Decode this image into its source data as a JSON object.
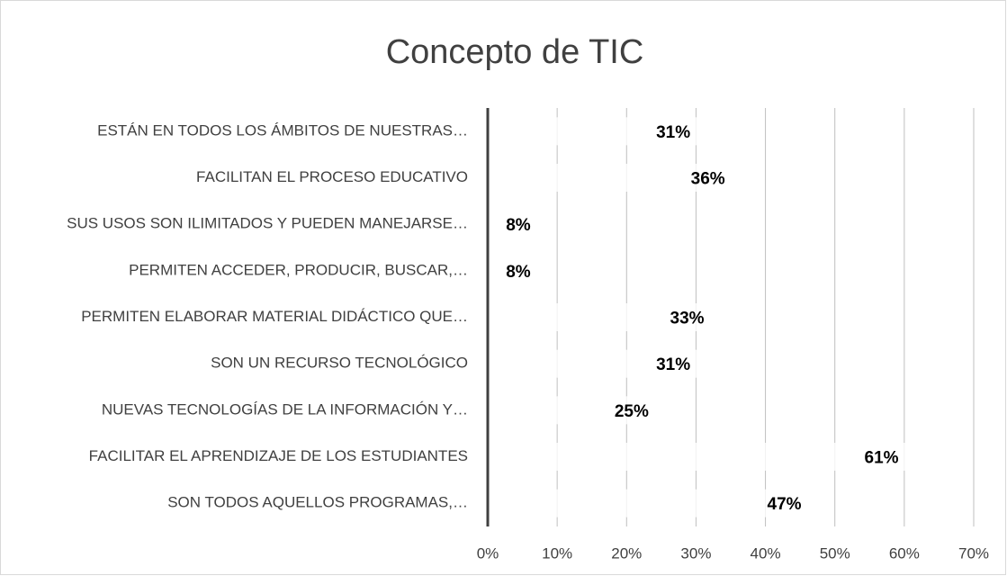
{
  "chart_data": {
    "type": "bar",
    "orientation": "horizontal",
    "title": "Concepto de TIC",
    "categories": [
      "ESTÁN EN TODOS LOS ÁMBITOS DE NUESTRAS…",
      "FACILITAN EL PROCESO EDUCATIVO",
      "SUS USOS SON ILIMITADOS Y PUEDEN MANEJARSE…",
      "PERMITEN ACCEDER, PRODUCIR, BUSCAR,…",
      "PERMITEN ELABORAR MATERIAL DIDÁCTICO QUE…",
      "SON UN RECURSO TECNOLÓGICO",
      "NUEVAS TECNOLOGÍAS DE LA INFORMACIÓN Y…",
      "FACILITAR EL APRENDIZAJE DE LOS ESTUDIANTES",
      "SON TODOS AQUELLOS PROGRAMAS,…"
    ],
    "values": [
      31,
      36,
      8,
      8,
      33,
      31,
      25,
      61,
      47
    ],
    "value_labels": [
      "31%",
      "36%",
      "8%",
      "8%",
      "33%",
      "31%",
      "25%",
      "61%",
      "47%"
    ],
    "color": "#ffffff",
    "xlim": [
      0,
      70
    ],
    "xticks": [
      {
        "value": 0,
        "label": "0%"
      },
      {
        "value": 10,
        "label": "10%"
      },
      {
        "value": 20,
        "label": "20%"
      },
      {
        "value": 30,
        "label": "30%"
      },
      {
        "value": 40,
        "label": "40%"
      },
      {
        "value": 50,
        "label": "50%"
      },
      {
        "value": 60,
        "label": "60%"
      },
      {
        "value": 70,
        "label": "70%"
      }
    ],
    "grid": true
  }
}
